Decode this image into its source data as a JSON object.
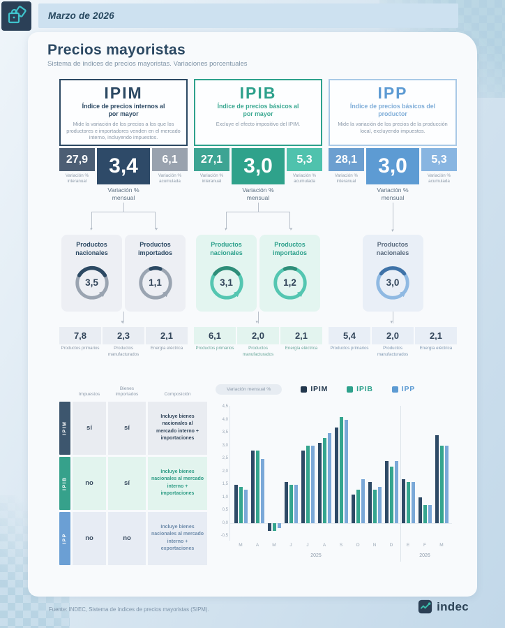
{
  "header": {
    "date": "Marzo de 2026"
  },
  "page": {
    "title": "Precios mayoristas",
    "subtitle": "Sistema de índices de precios mayoristas. Variaciones porcentuales"
  },
  "labels": {
    "interanual": "Variación % interanual",
    "mensual": "Variación % mensual",
    "acumulada": "Variación % acumulada"
  },
  "colors": {
    "ipim": "#2c4963",
    "ipib": "#2ea18c",
    "ipp": "#5d9bd3"
  },
  "indices": [
    {
      "name": "IPIM",
      "subtitle": "Índice de precios internos al por mayor",
      "description": "Mide la variación de los precios a los que los productores e importadores venden en el mercado interno, incluyendo impuestos.",
      "interanual": "27,9",
      "mensual": "3,4",
      "acumulada": "6,1",
      "productos": [
        {
          "label": "Productos nacionales",
          "value": "3,5"
        },
        {
          "label": "Productos importados",
          "value": "1,1"
        }
      ],
      "desglose": [
        {
          "value": "7,8",
          "label": "Productos primarios"
        },
        {
          "value": "2,3",
          "label": "Productos manufacturados"
        },
        {
          "value": "2,1",
          "label": "Energía eléctrica"
        }
      ]
    },
    {
      "name": "IPIB",
      "subtitle": "Índice de precios básicos al por mayor",
      "description": "Excluye el efecto impositivo del IPIM.",
      "interanual": "27,1",
      "mensual": "3,0",
      "acumulada": "5,3",
      "productos": [
        {
          "label": "Productos nacionales",
          "value": "3,1"
        },
        {
          "label": "Productos importados",
          "value": "1,2"
        }
      ],
      "desglose": [
        {
          "value": "6,1",
          "label": "Productos primarios"
        },
        {
          "value": "2,0",
          "label": "Productos manufacturados"
        },
        {
          "value": "2,1",
          "label": "Energía eléctrica"
        }
      ]
    },
    {
      "name": "IPP",
      "subtitle": "Índice de precios básicos del productor",
      "description": "Mide la variación de los precios de la producción local, excluyendo impuestos.",
      "interanual": "28,1",
      "mensual": "3,0",
      "acumulada": "5,3",
      "productos": [
        {
          "label": "Productos nacionales",
          "value": "3,0"
        }
      ],
      "desglose": [
        {
          "value": "5,4",
          "label": "Productos primarios"
        },
        {
          "value": "2,0",
          "label": "Productos manufacturados"
        },
        {
          "value": "2,1",
          "label": "Energía eléctrica"
        }
      ]
    }
  ],
  "table": {
    "headers": [
      "Impuestos",
      "Bienes importados",
      "Composición"
    ],
    "rows": [
      {
        "index": "IPIM",
        "impuestos": "sí",
        "bienes": "sí",
        "composicion": "Incluye bienes nacionales al mercado interno + importaciones"
      },
      {
        "index": "IPIB",
        "impuestos": "no",
        "bienes": "sí",
        "composicion": "Incluye bienes nacionales al mercado interno + importaciones"
      },
      {
        "index": "IPP",
        "impuestos": "no",
        "bienes": "no",
        "composicion": "Incluye bienes nacionales al mercado interno + exportaciones"
      }
    ]
  },
  "chart_data": {
    "type": "bar",
    "title": "Variación mensual %",
    "categories": [
      "M",
      "A",
      "M",
      "J",
      "J",
      "A",
      "S",
      "O",
      "N",
      "D",
      "E",
      "F",
      "M"
    ],
    "series": [
      {
        "name": "IPIM",
        "color": "#2e4a66",
        "values": [
          1.5,
          2.8,
          -0.3,
          1.6,
          2.8,
          3.1,
          3.7,
          1.1,
          1.6,
          2.4,
          1.7,
          1.0,
          3.4
        ]
      },
      {
        "name": "IPIB",
        "color": "#35a58e",
        "values": [
          1.4,
          2.8,
          -0.3,
          1.5,
          3.0,
          3.3,
          4.1,
          1.3,
          1.3,
          2.2,
          1.6,
          0.7,
          3.0
        ]
      },
      {
        "name": "IPP",
        "color": "#7aa8d8",
        "values": [
          1.3,
          2.5,
          -0.2,
          1.5,
          3.0,
          3.5,
          4.0,
          1.7,
          1.4,
          2.4,
          1.6,
          0.7,
          3.0
        ]
      }
    ],
    "ylim": [
      -0.5,
      4.5
    ],
    "yticks": [
      "4,5",
      "4,0",
      "3,5",
      "3,0",
      "2,5",
      "2,0",
      "1,5",
      "1,0",
      "0,5",
      "0,0",
      "-0,5"
    ],
    "year_groups": [
      {
        "label": "2025",
        "span": 10
      },
      {
        "label": "2026",
        "span": 3
      }
    ],
    "grid": false,
    "legend_position": "top"
  },
  "footer": {
    "source": "Fuente: INDEC, Sistema de índices de precios mayoristas (SIPM).",
    "logo_text": "indec"
  }
}
